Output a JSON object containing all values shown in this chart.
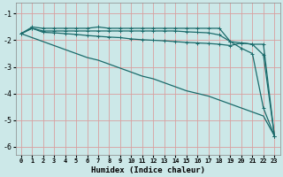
{
  "xlabel": "Humidex (Indice chaleur)",
  "bg_color": "#cce8e8",
  "grid_color": "#b8d8d8",
  "line_color": "#1a6b6b",
  "xlim": [
    -0.5,
    23.5
  ],
  "ylim": [
    -6.3,
    -0.6
  ],
  "yticks": [
    -1,
    -2,
    -3,
    -4,
    -5,
    -6
  ],
  "xticks": [
    0,
    1,
    2,
    3,
    4,
    5,
    6,
    7,
    8,
    9,
    10,
    11,
    12,
    13,
    14,
    15,
    16,
    17,
    18,
    19,
    20,
    21,
    22,
    23
  ],
  "line1_x": [
    0,
    1,
    2,
    3,
    4,
    5,
    6,
    7,
    8,
    9,
    10,
    11,
    12,
    13,
    14,
    15,
    16,
    17,
    18,
    19,
    20,
    21,
    22,
    23
  ],
  "line1_y": [
    -1.75,
    -1.5,
    -1.55,
    -1.55,
    -1.55,
    -1.55,
    -1.55,
    -1.5,
    -1.55,
    -1.55,
    -1.55,
    -1.55,
    -1.55,
    -1.55,
    -1.55,
    -1.55,
    -1.55,
    -1.55,
    -1.55,
    -2.05,
    -2.3,
    -2.5,
    -4.55,
    -5.6
  ],
  "line2_x": [
    0,
    1,
    2,
    3,
    4,
    5,
    6,
    7,
    8,
    9,
    10,
    11,
    12,
    13,
    14,
    15,
    16,
    17,
    18,
    19,
    20,
    21,
    22,
    23
  ],
  "line2_y": [
    -1.75,
    -1.55,
    -1.65,
    -1.65,
    -1.65,
    -1.65,
    -1.65,
    -1.65,
    -1.65,
    -1.65,
    -1.65,
    -1.65,
    -1.65,
    -1.65,
    -1.65,
    -1.68,
    -1.7,
    -1.72,
    -1.8,
    -2.05,
    -2.1,
    -2.15,
    -2.15,
    -5.6
  ],
  "line3_x": [
    0,
    1,
    2,
    3,
    4,
    5,
    6,
    7,
    8,
    9,
    10,
    11,
    12,
    13,
    14,
    15,
    16,
    17,
    18,
    19,
    20,
    21,
    22,
    23
  ],
  "line3_y": [
    -1.75,
    -1.55,
    -1.7,
    -1.72,
    -1.75,
    -1.78,
    -1.82,
    -1.85,
    -1.88,
    -1.9,
    -1.95,
    -1.98,
    -2.0,
    -2.02,
    -2.05,
    -2.08,
    -2.1,
    -2.12,
    -2.15,
    -2.2,
    -2.1,
    -2.15,
    -2.55,
    -5.6
  ],
  "line4_x": [
    0,
    1,
    2,
    3,
    4,
    5,
    6,
    7,
    8,
    9,
    10,
    11,
    12,
    13,
    14,
    15,
    16,
    17,
    18,
    19,
    20,
    21,
    22,
    23
  ],
  "line4_y": [
    -1.75,
    -1.9,
    -2.05,
    -2.2,
    -2.35,
    -2.5,
    -2.65,
    -2.75,
    -2.9,
    -3.05,
    -3.2,
    -3.35,
    -3.45,
    -3.6,
    -3.75,
    -3.9,
    -4.0,
    -4.1,
    -4.25,
    -4.4,
    -4.55,
    -4.7,
    -4.85,
    -5.6
  ]
}
